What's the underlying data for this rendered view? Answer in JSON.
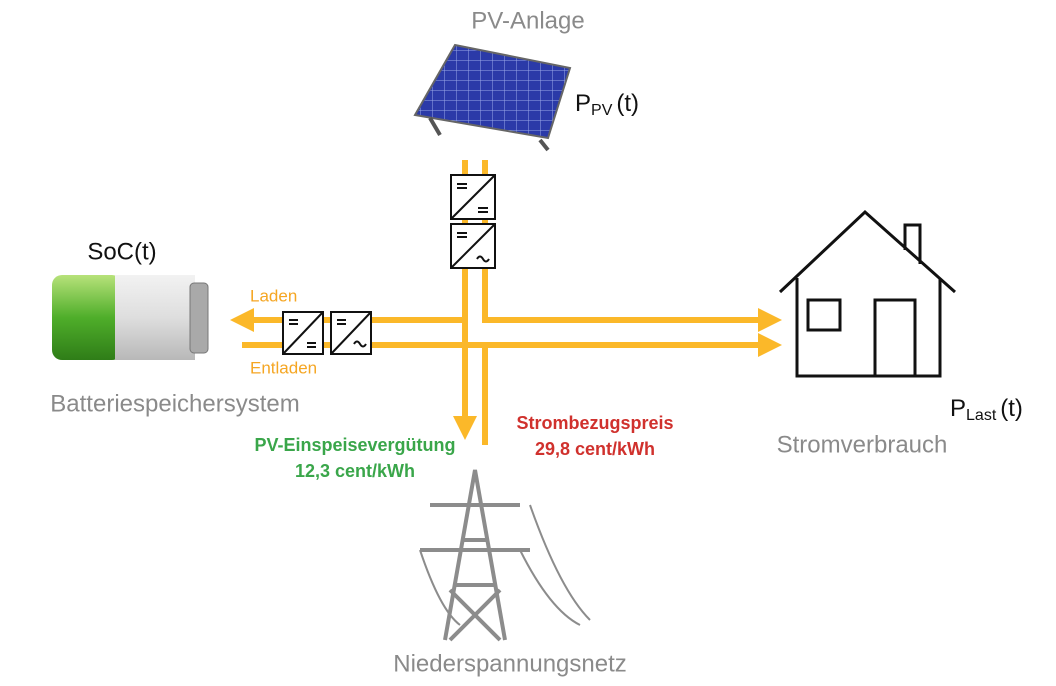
{
  "pv": {
    "title": "PV-Anlage",
    "power": {
      "symbol": "P",
      "sub": "PV",
      "suffix": "(t)"
    }
  },
  "battery": {
    "soc": "SoC(t)",
    "charge": "Laden",
    "discharge": "Entladen",
    "title": "Batteriespeichersystem"
  },
  "house": {
    "title": "Stromverbrauch",
    "power": {
      "symbol": "P",
      "sub": "Last",
      "suffix": "(t)"
    }
  },
  "grid": {
    "title": "Niederspannungsnetz",
    "purchase": {
      "label": "Strombezugspreis",
      "price": "29,8 cent/kWh"
    },
    "feed_in": {
      "label": "PV-Einspeisevergütung",
      "price": "12,3 cent/kWh"
    }
  }
}
